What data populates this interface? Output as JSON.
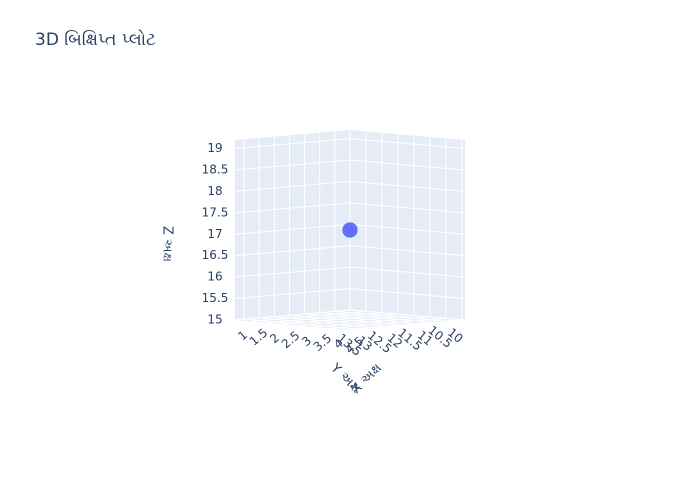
{
  "chart_data": {
    "type": "scatter3d",
    "title": "3D બિક્ષિપ્ત પ્લોટ",
    "xlabel": "X અક્ષ",
    "ylabel": "Y અક્ષ",
    "zlabel": "Z અક્ષ",
    "x_ticks": [
      "1",
      "1.5",
      "2",
      "2.5",
      "3",
      "3.5",
      "4",
      "4.5"
    ],
    "y_ticks": [
      "10",
      "10.5",
      "11",
      "11.5",
      "12",
      "12.5",
      "13",
      "13.5"
    ],
    "z_ticks": [
      "15",
      "15.5",
      "16",
      "16.5",
      "17",
      "17.5",
      "18",
      "18.5",
      "19"
    ],
    "xlim": [
      1,
      4.6
    ],
    "ylim": [
      10,
      13.8
    ],
    "zlim": [
      15,
      19.2
    ],
    "grid": true,
    "points": [
      {
        "x": 2.8,
        "y": 11.9,
        "z": 17.1
      }
    ],
    "marker_color": "#636efa",
    "pane_color": "#e5ecf6",
    "text_color": "#2a3f5f"
  }
}
